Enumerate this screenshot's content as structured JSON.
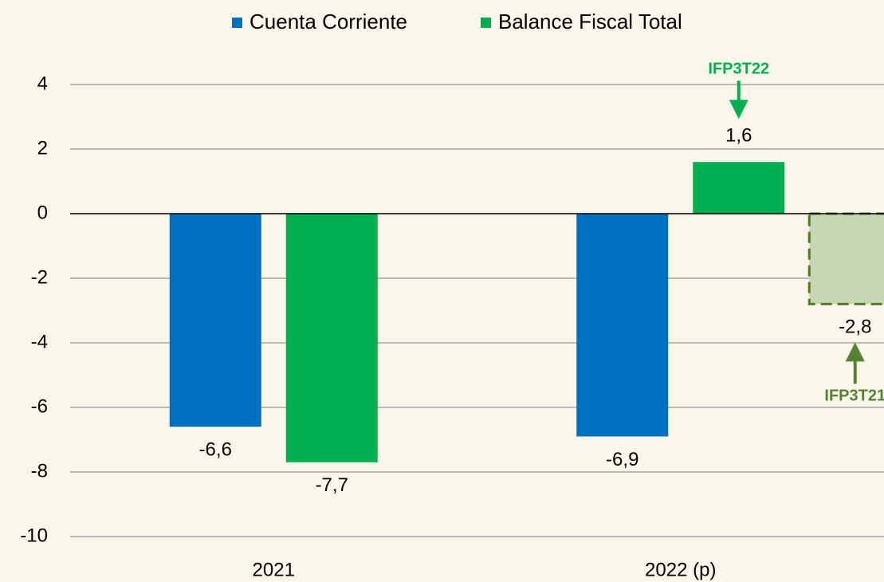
{
  "chart_data": {
    "type": "bar",
    "categories": [
      "2021",
      "2022 (p)"
    ],
    "series": [
      {
        "name": "Cuenta Corriente",
        "color": "#0070c0",
        "values": [
          -6.6,
          -6.9
        ],
        "value_labels": [
          "-6,6",
          "-6,9"
        ]
      },
      {
        "name": "Balance Fiscal Total",
        "color": "#00b050",
        "values": [
          -7.7,
          1.6
        ],
        "value_labels": [
          "-7,7",
          "1,6"
        ],
        "annotation": {
          "text": "IFP3T22",
          "index": 1,
          "color": "#00b050"
        }
      }
    ],
    "reference_bar": {
      "values": [
        null,
        -2.8
      ],
      "value_labels": [
        null,
        "-2,8"
      ],
      "color": "#c9d6b4",
      "border_color": "#4f7a28",
      "style": "dashed",
      "annotation": {
        "text": "IFP3T21",
        "index": 1,
        "color": "#548235"
      }
    },
    "ylim": [
      -10,
      4
    ],
    "yticks": [
      -10,
      -8,
      -6,
      -4,
      -2,
      0,
      2,
      4
    ],
    "grid": true,
    "legend": "top"
  }
}
